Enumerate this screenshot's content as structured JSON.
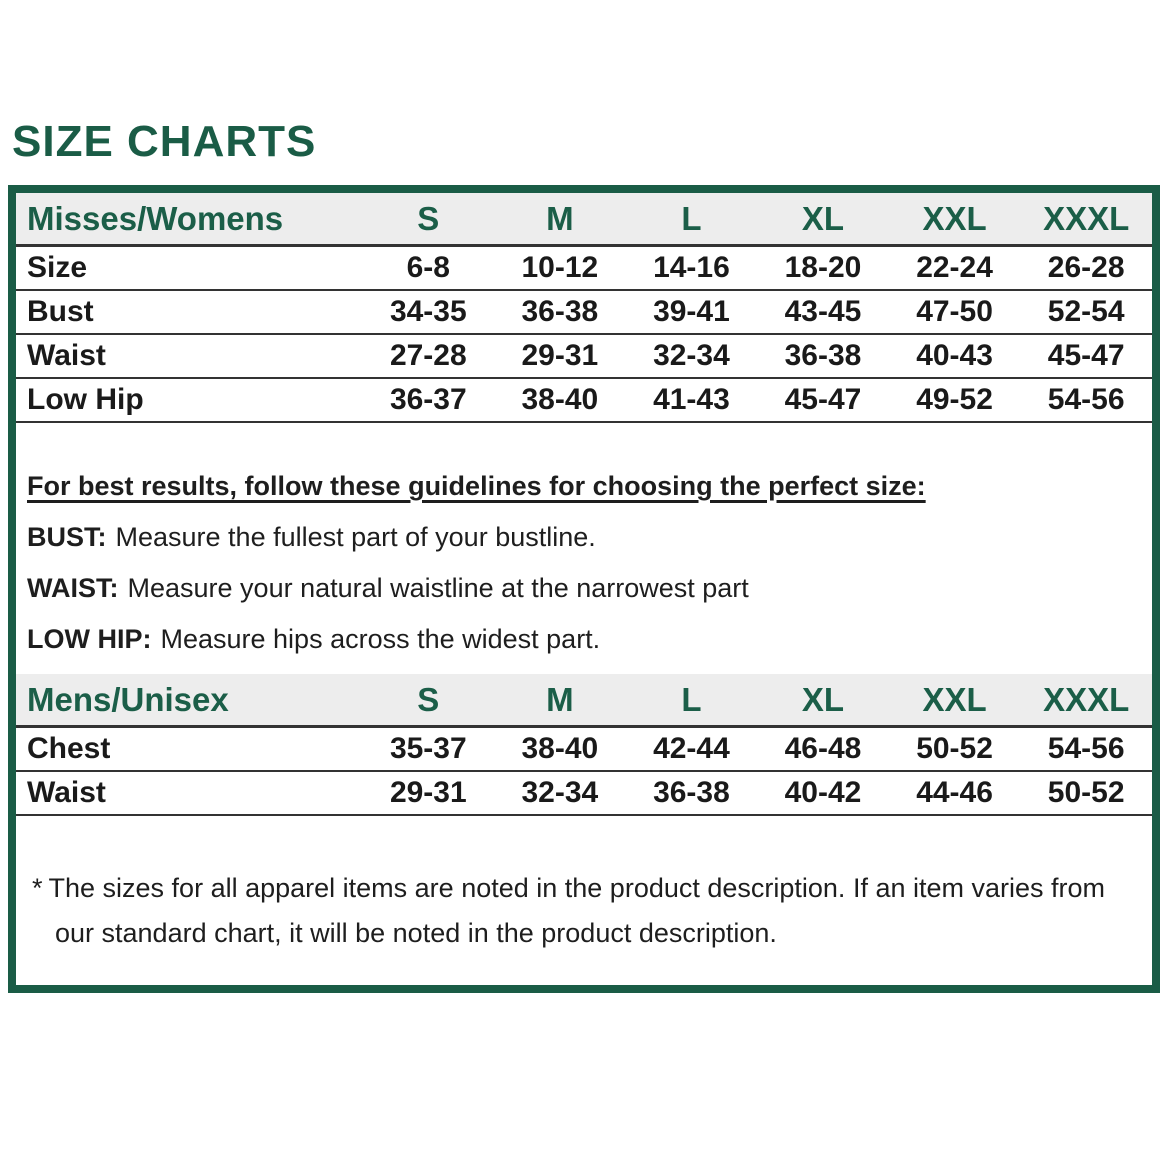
{
  "accent_color": "#1a5c46",
  "header_bg_color": "#ededed",
  "page": {
    "title": "SIZE CHARTS"
  },
  "misses_table": {
    "header": "Misses/Womens",
    "columns": [
      "S",
      "M",
      "L",
      "XL",
      "XXL",
      "XXXL"
    ],
    "rows": [
      {
        "label": "Size",
        "values": [
          "6-8",
          "10-12",
          "14-16",
          "18-20",
          "22-24",
          "26-28"
        ]
      },
      {
        "label": "Bust",
        "values": [
          "34-35",
          "36-38",
          "39-41",
          "43-45",
          "47-50",
          "52-54"
        ]
      },
      {
        "label": "Waist",
        "values": [
          "27-28",
          "29-31",
          "32-34",
          "36-38",
          "40-43",
          "45-47"
        ]
      },
      {
        "label": "Low Hip",
        "values": [
          "36-37",
          "38-40",
          "41-43",
          "45-47",
          "49-52",
          "54-56"
        ]
      }
    ]
  },
  "guidelines": {
    "heading": "For best results, follow these guidelines for choosing the perfect size:",
    "items": [
      {
        "label": "BUST:",
        "text": "Measure the fullest part of your bustline."
      },
      {
        "label": "WAIST:",
        "text": "Measure your natural waistline at the narrowest part"
      },
      {
        "label": "LOW HIP:",
        "text": "Measure hips across the widest part."
      }
    ]
  },
  "mens_table": {
    "header": "Mens/Unisex",
    "columns": [
      "S",
      "M",
      "L",
      "XL",
      "XXL",
      "XXXL"
    ],
    "rows": [
      {
        "label": "Chest",
        "values": [
          "35-37",
          "38-40",
          "42-44",
          "46-48",
          "50-52",
          "54-56"
        ]
      },
      {
        "label": "Waist",
        "values": [
          "29-31",
          "32-34",
          "36-38",
          "40-42",
          "44-46",
          "50-52"
        ]
      }
    ]
  },
  "footnote": {
    "marker": "*",
    "text": "The sizes for all apparel items are noted in the product description. If an item varies from our standard chart, it will be noted in the product description."
  }
}
